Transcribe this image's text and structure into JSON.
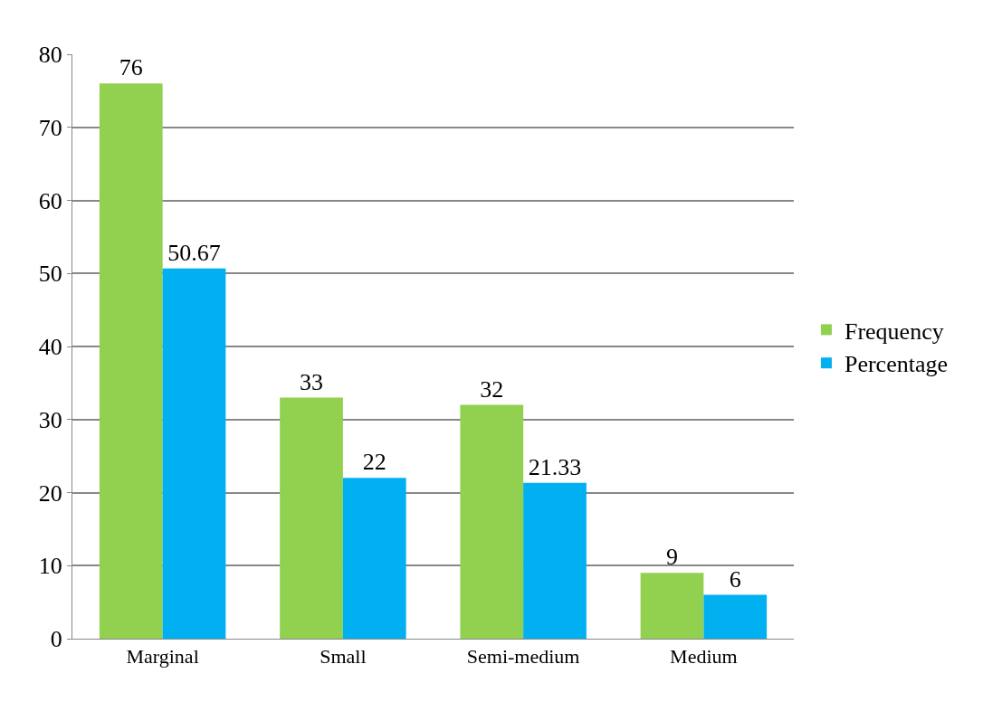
{
  "chart_data": {
    "type": "bar",
    "categories": [
      "Marginal",
      "Small",
      "Semi-medium",
      "Medium"
    ],
    "series": [
      {
        "name": "Frequency",
        "color": "#92d050",
        "values": [
          76,
          33,
          32,
          9
        ]
      },
      {
        "name": "Percentage",
        "color": "#00b0f0",
        "values": [
          50.67,
          22,
          21.33,
          6
        ]
      }
    ],
    "ylim": [
      0,
      80
    ],
    "yticks": [
      0,
      10,
      20,
      30,
      40,
      50,
      60,
      70,
      80
    ],
    "grid": "y",
    "legend": "right",
    "data_labels": true
  }
}
